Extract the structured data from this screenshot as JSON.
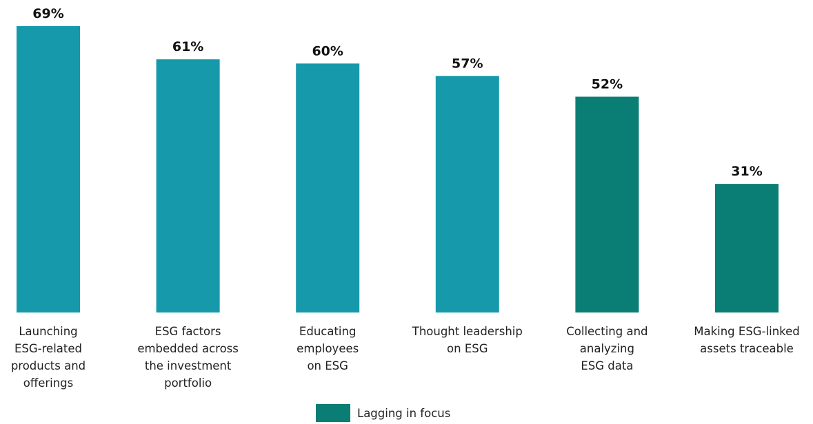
{
  "chart_data": {
    "type": "bar",
    "categories": [
      [
        "Launching",
        "ESG-related",
        "products and",
        "offerings"
      ],
      [
        "ESG factors",
        "embedded across",
        "the investment",
        "portfolio"
      ],
      [
        "Educating",
        "employees",
        "on ESG"
      ],
      [
        "Thought leadership",
        "on ESG"
      ],
      [
        "Collecting and",
        "analyzing",
        "ESG data"
      ],
      [
        "Making ESG-linked",
        "assets traceable"
      ]
    ],
    "values": [
      69,
      61,
      60,
      57,
      52,
      31
    ],
    "value_labels": [
      "69%",
      "61%",
      "60%",
      "57%",
      "52%",
      "31%"
    ],
    "groups": [
      "leading",
      "leading",
      "leading",
      "leading",
      "lagging",
      "lagging"
    ],
    "colors": {
      "leading": "#1699aa",
      "lagging": "#0a7e74"
    },
    "ylim": [
      0,
      69
    ],
    "grid": false,
    "legend": {
      "position": "bottom-center",
      "entries": [
        {
          "label": "Lagging in focus",
          "group": "lagging"
        }
      ]
    }
  }
}
